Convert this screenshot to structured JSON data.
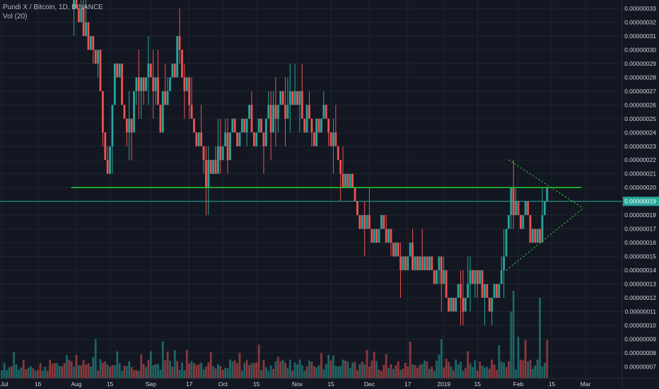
{
  "header": {
    "symbol_line": "Pundi X / Bitcoin, 1D, BINANCE",
    "volume_label": "Vol (20)"
  },
  "chart_data": {
    "type": "candlestick",
    "title": "Pundi X / Bitcoin, 1D, BINANCE",
    "x_ticks": [
      "Jul",
      "16",
      "Aug",
      "15",
      "Sep",
      "17",
      "Oct",
      "15",
      "Nov",
      "15",
      "Dec",
      "17",
      "2019",
      "15",
      "Feb",
      "15",
      "Mar"
    ],
    "y_ticks": [
      "0.00000033",
      "0.00000032",
      "0.00000031",
      "0.00000030",
      "0.00000029",
      "0.00000028",
      "0.00000027",
      "0.00000026",
      "0.00000025",
      "0.00000024",
      "0.00000023",
      "0.00000022",
      "0.00000021",
      "0.00000020",
      "0.00000019",
      "0.00000018",
      "0.00000017",
      "0.00000016",
      "0.00000015",
      "0.00000014",
      "0.00000013",
      "0.00000012",
      "0.00000011",
      "0.00000010",
      "0.00000009",
      "0.00000008",
      "0.00000007"
    ],
    "ylim": [
      6.6e-08,
      3.34e-07
    ],
    "last_price": "0.00000019",
    "support_line": 2e-07,
    "triangle": {
      "top_start": [
        "2019-01-28",
        2.2e-07
      ],
      "apex": [
        "2019-02-28",
        1.85e-07
      ],
      "bottom_start": [
        "2019-01-27",
        1.4e-07
      ]
    },
    "volume_indicator": "Vol (20)",
    "colors": {
      "up": "#26a69a",
      "down": "#ef5350",
      "support": "#21c42f",
      "triangle": "#2ed12e",
      "price_tag": "#26a69a",
      "grid": "#1f2433",
      "axis_text": "#d1d4dc"
    },
    "anchors": [
      [
        "2018-07-31",
        3.33e-07
      ],
      [
        "2018-08-05",
        3e-07
      ],
      [
        "2018-08-10",
        2.85e-07
      ],
      [
        "2018-08-14",
        2.05e-07
      ],
      [
        "2018-08-17",
        2.9e-07
      ],
      [
        "2018-08-22",
        2.45e-07
      ],
      [
        "2018-08-30",
        2.9e-07
      ],
      [
        "2018-09-05",
        2.5e-07
      ],
      [
        "2018-09-12",
        3e-07
      ],
      [
        "2018-09-18",
        2.5e-07
      ],
      [
        "2018-09-24",
        2.1e-07
      ],
      [
        "2018-10-01",
        2.25e-07
      ],
      [
        "2018-10-05",
        2.4e-07
      ],
      [
        "2018-10-15",
        2.4e-07
      ],
      [
        "2018-10-22",
        2.55e-07
      ],
      [
        "2018-10-30",
        2.65e-07
      ],
      [
        "2018-11-05",
        2.55e-07
      ],
      [
        "2018-11-13",
        2.45e-07
      ],
      [
        "2018-11-20",
        2.1e-07
      ],
      [
        "2018-11-25",
        1.85e-07
      ],
      [
        "2018-12-01",
        1.65e-07
      ],
      [
        "2018-12-06",
        1.7e-07
      ],
      [
        "2018-12-10",
        1.6e-07
      ],
      [
        "2018-12-16",
        1.45e-07
      ],
      [
        "2018-12-27",
        1.45e-07
      ],
      [
        "2019-01-01",
        1.25e-07
      ],
      [
        "2019-01-04",
        1.15e-07
      ],
      [
        "2019-01-10",
        1.2e-07
      ],
      [
        "2019-01-15",
        1.3e-07
      ],
      [
        "2019-01-20",
        1.2e-07
      ],
      [
        "2019-01-24",
        1.35e-07
      ],
      [
        "2019-01-27",
        1.65e-07
      ],
      [
        "2019-01-29",
        1.95e-07
      ],
      [
        "2019-02-02",
        1.75e-07
      ],
      [
        "2019-02-08",
        1.6e-07
      ],
      [
        "2019-02-13",
        1.9e-07
      ]
    ],
    "volume_spikes": [
      [
        "2018-08-09",
        9e-08
      ],
      [
        "2018-09-06",
        8.85e-08
      ],
      [
        "2018-09-16",
        8.2e-08
      ],
      [
        "2018-10-16",
        8.6e-08
      ],
      [
        "2018-11-11",
        8e-08
      ],
      [
        "2018-11-30",
        8.2e-08
      ],
      [
        "2018-12-18",
        8.8e-08
      ],
      [
        "2018-12-31",
        9e-08
      ],
      [
        "2019-01-24",
        8.55e-08
      ],
      [
        "2019-01-29",
        1.1e-07
      ],
      [
        "2019-01-30",
        1.25e-07
      ],
      [
        "2019-02-01",
        9.15e-08
      ],
      [
        "2019-02-04",
        8.95e-08
      ],
      [
        "2019-02-10",
        1.2e-07
      ],
      [
        "2019-02-13",
        8.95e-08
      ]
    ]
  }
}
